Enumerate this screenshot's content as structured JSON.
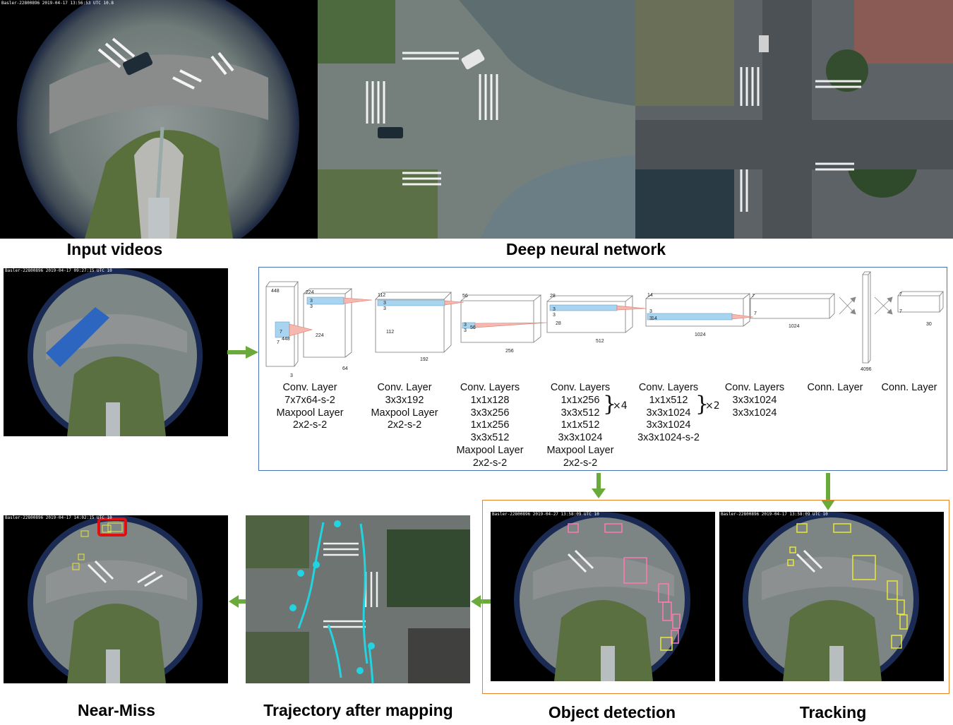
{
  "captions": {
    "input_videos": "Input videos",
    "deep_neural_network": "Deep neural network",
    "near_miss": "Near-Miss",
    "trajectory": "Trajectory after mapping",
    "object_detection": "Object detection",
    "tracking": "Tracking"
  },
  "timestamps": {
    "fisheye_top": "Basler-22800896 2019-04-17 13:56:53 UTC  10.8",
    "fisheye_left": "Basler-22800896 2019-04-17 09:27:15 UTC  10",
    "near_miss": "Basler-22800896 2019-04-17 14:02:15 UTC  10",
    "detection": "Basler-22800896 2019-04-27 13:58:09 UTC  10",
    "tracking": "Basler-22800896 2019-04-17 13:58:09 UTC  10"
  },
  "cnn": {
    "layers": [
      {
        "lines": [
          "Conv. Layer",
          "7x7x64-s-2",
          "Maxpool Layer",
          "2x2-s-2"
        ]
      },
      {
        "lines": [
          "Conv. Layer",
          "3x3x192",
          "Maxpool Layer",
          "2x2-s-2"
        ]
      },
      {
        "lines": [
          "Conv. Layers",
          "1x1x128",
          "3x3x256",
          "1x1x256",
          "3x3x512",
          "Maxpool Layer",
          "2x2-s-2"
        ]
      },
      {
        "lines": [
          "Conv. Layers",
          "1x1x256",
          "3x3x512",
          "1x1x512",
          "3x3x1024",
          "Maxpool Layer",
          "2x2-s-2"
        ],
        "repeat": "×4"
      },
      {
        "lines": [
          "Conv. Layers",
          "1x1x512",
          "3x3x1024",
          "3x3x1024",
          "3x3x1024-s-2"
        ],
        "repeat": "×2"
      },
      {
        "lines": [
          "Conv. Layers",
          "3x3x1024",
          "3x3x1024"
        ]
      },
      {
        "lines": [
          "Conn. Layer"
        ]
      },
      {
        "lines": [
          "Conn. Layer"
        ]
      }
    ],
    "dims": {
      "b1": [
        "448",
        "448",
        "7",
        "7",
        "3"
      ],
      "b2": [
        "224",
        "3",
        "3",
        "224",
        "64"
      ],
      "b3": [
        "112",
        "3",
        "3",
        "112",
        "192"
      ],
      "b4": [
        "56",
        "3",
        "3",
        "56",
        "256"
      ],
      "b5": [
        "28",
        "3",
        "3",
        "28",
        "512"
      ],
      "b6": [
        "14",
        "3",
        "3",
        "14",
        "1024"
      ],
      "b7": [
        "7",
        "7",
        "1024"
      ],
      "b8": [
        "4096"
      ],
      "b9": [
        "7",
        "7",
        "30"
      ]
    }
  },
  "colors": {
    "arrow": "#6aaa3a",
    "cnn_border": "#4a72b8",
    "detection_border": "#e8832a",
    "near_miss_box": "#e01010",
    "trajectory": "#22d3e0",
    "detect_box": "#ff7ab0",
    "track_box": "#e8e83a"
  }
}
